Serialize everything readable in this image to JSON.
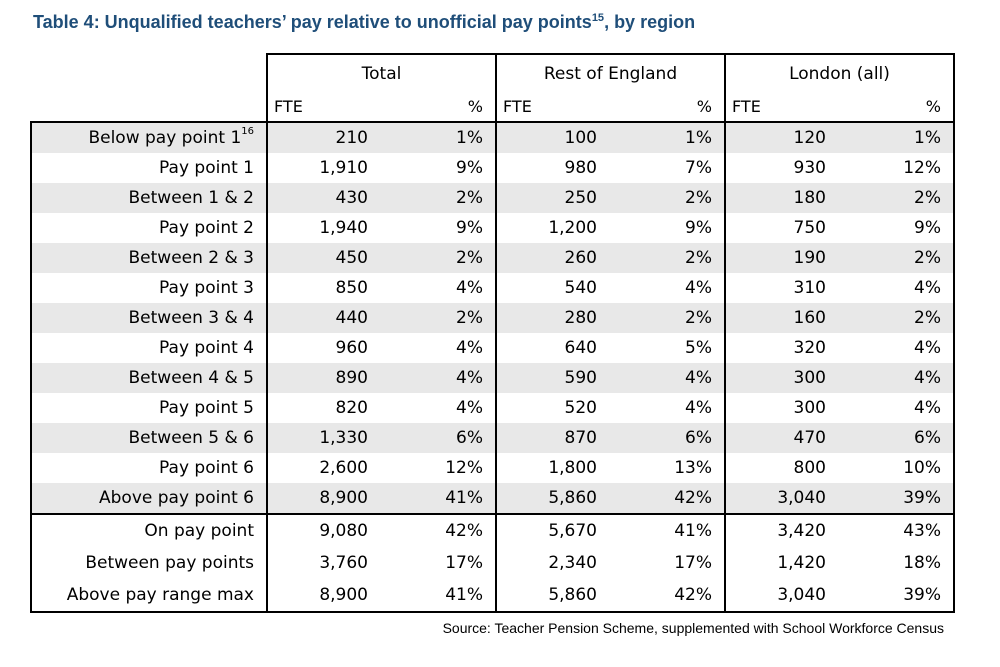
{
  "title": {
    "text": "Table 4: Unqualified teachers’ pay relative to unofficial pay points",
    "sup": "15",
    "suffix": ", by region"
  },
  "table": {
    "groups": [
      "Total",
      "Rest of England",
      "London (all)"
    ],
    "subheaders": {
      "fte": "FTE",
      "pct": "%"
    },
    "rows": [
      {
        "label": "Below pay point 1",
        "sup": "16",
        "cells": [
          "210",
          "1%",
          "100",
          "1%",
          "120",
          "1%"
        ]
      },
      {
        "label": "Pay point 1",
        "cells": [
          "1,910",
          "9%",
          "980",
          "7%",
          "930",
          "12%"
        ]
      },
      {
        "label": "Between 1 & 2",
        "cells": [
          "430",
          "2%",
          "250",
          "2%",
          "180",
          "2%"
        ]
      },
      {
        "label": "Pay point 2",
        "cells": [
          "1,940",
          "9%",
          "1,200",
          "9%",
          "750",
          "9%"
        ]
      },
      {
        "label": "Between 2 & 3",
        "cells": [
          "450",
          "2%",
          "260",
          "2%",
          "190",
          "2%"
        ]
      },
      {
        "label": "Pay point 3",
        "cells": [
          "850",
          "4%",
          "540",
          "4%",
          "310",
          "4%"
        ]
      },
      {
        "label": "Between 3 & 4",
        "cells": [
          "440",
          "2%",
          "280",
          "2%",
          "160",
          "2%"
        ]
      },
      {
        "label": "Pay point 4",
        "cells": [
          "960",
          "4%",
          "640",
          "5%",
          "320",
          "4%"
        ]
      },
      {
        "label": "Between 4 & 5",
        "cells": [
          "890",
          "4%",
          "590",
          "4%",
          "300",
          "4%"
        ]
      },
      {
        "label": "Pay point 5",
        "cells": [
          "820",
          "4%",
          "520",
          "4%",
          "300",
          "4%"
        ]
      },
      {
        "label": "Between 5 & 6",
        "cells": [
          "1,330",
          "6%",
          "870",
          "6%",
          "470",
          "6%"
        ]
      },
      {
        "label": "Pay point 6",
        "cells": [
          "2,600",
          "12%",
          "1,800",
          "13%",
          "800",
          "10%"
        ]
      },
      {
        "label": "Above pay point 6",
        "cells": [
          "8,900",
          "41%",
          "5,860",
          "42%",
          "3,040",
          "39%"
        ]
      }
    ],
    "summary": [
      {
        "label": "On pay point",
        "cells": [
          "9,080",
          "42%",
          "5,670",
          "41%",
          "3,420",
          "43%"
        ]
      },
      {
        "label": "Between pay points",
        "cells": [
          "3,760",
          "17%",
          "2,340",
          "17%",
          "1,420",
          "18%"
        ]
      },
      {
        "label": "Above pay range max",
        "cells": [
          "8,900",
          "41%",
          "5,860",
          "42%",
          "3,040",
          "39%"
        ]
      }
    ]
  },
  "source": "Source: Teacher Pension Scheme, supplemented with School Workforce Census"
}
